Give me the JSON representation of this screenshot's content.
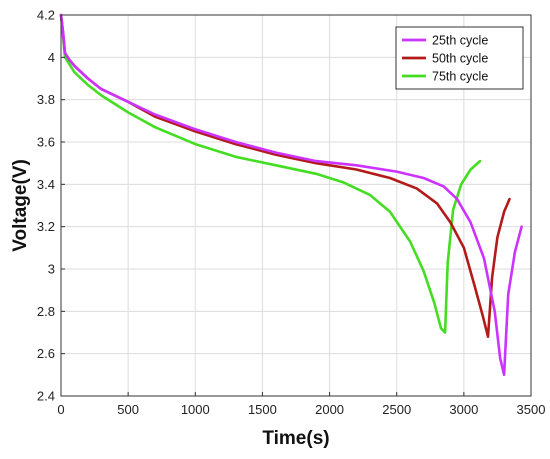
{
  "chart_data": {
    "type": "line",
    "title": "",
    "xlabel": "Time(s)",
    "ylabel": "Voltage(V)",
    "xlim": [
      0,
      3500
    ],
    "ylim": [
      2.4,
      4.2
    ],
    "xticks": [
      0,
      500,
      1000,
      1500,
      2000,
      2500,
      3000,
      3500
    ],
    "yticks": [
      2.4,
      2.6,
      2.8,
      3.0,
      3.2,
      3.4,
      3.6,
      3.8,
      4.0,
      4.2
    ],
    "ytick_labels": [
      "2.4",
      "2.6",
      "2.8",
      "3",
      "3.2",
      "3.4",
      "3.6",
      "3.8",
      "4",
      "4.2"
    ],
    "grid": true,
    "legend_position": "top-right",
    "series": [
      {
        "name": "25th cycle",
        "color": "#cc33ff",
        "x": [
          0,
          15,
          30,
          60,
          100,
          200,
          300,
          500,
          700,
          1000,
          1300,
          1600,
          1900,
          2200,
          2500,
          2700,
          2850,
          2950,
          3050,
          3150,
          3230,
          3270,
          3300,
          3330,
          3380,
          3430
        ],
        "y": [
          4.2,
          4.12,
          4.02,
          3.99,
          3.96,
          3.9,
          3.85,
          3.79,
          3.73,
          3.66,
          3.6,
          3.55,
          3.51,
          3.49,
          3.46,
          3.43,
          3.39,
          3.33,
          3.22,
          3.05,
          2.8,
          2.58,
          2.5,
          2.88,
          3.08,
          3.2
        ]
      },
      {
        "name": "50th cycle",
        "color": "#b31b1b",
        "x": [
          0,
          15,
          30,
          60,
          100,
          200,
          300,
          500,
          700,
          1000,
          1300,
          1600,
          1900,
          2200,
          2450,
          2650,
          2800,
          2900,
          3000,
          3080,
          3140,
          3180,
          3210,
          3250,
          3300,
          3340
        ],
        "y": [
          4.2,
          4.12,
          4.02,
          3.99,
          3.96,
          3.9,
          3.85,
          3.79,
          3.72,
          3.65,
          3.59,
          3.54,
          3.5,
          3.47,
          3.43,
          3.38,
          3.31,
          3.22,
          3.1,
          2.92,
          2.78,
          2.68,
          2.96,
          3.15,
          3.27,
          3.33
        ]
      },
      {
        "name": "75th cycle",
        "color": "#44dd22",
        "x": [
          0,
          15,
          30,
          60,
          100,
          200,
          300,
          500,
          700,
          1000,
          1300,
          1600,
          1900,
          2100,
          2300,
          2450,
          2600,
          2700,
          2780,
          2830,
          2860,
          2880,
          2920,
          2980,
          3050,
          3120
        ],
        "y": [
          4.2,
          4.1,
          4.0,
          3.97,
          3.93,
          3.87,
          3.82,
          3.74,
          3.67,
          3.59,
          3.53,
          3.49,
          3.45,
          3.41,
          3.35,
          3.27,
          3.13,
          2.99,
          2.84,
          2.72,
          2.7,
          3.03,
          3.28,
          3.4,
          3.47,
          3.51
        ]
      }
    ]
  }
}
